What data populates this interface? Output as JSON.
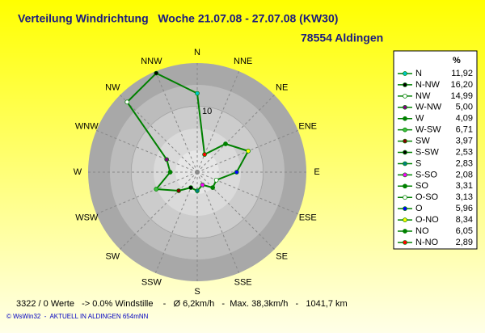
{
  "chart_data": {
    "type": "radar",
    "title": "Verteilung Windrichtung   Woche 21.07.08 - 27.07.08 (KW30)",
    "subtitle": "78554 Aldingen",
    "compass_labels": [
      "N",
      "NNE",
      "NE",
      "ENE",
      "E",
      "ESE",
      "SE",
      "SSE",
      "S",
      "SSW",
      "SW",
      "WSW",
      "W",
      "WNW",
      "NW",
      "NNW"
    ],
    "legend_title": "%",
    "directions": [
      "N",
      "N-NW",
      "NW",
      "W-NW",
      "W",
      "W-SW",
      "SW",
      "S-SW",
      "S",
      "S-SO",
      "SO",
      "O-SO",
      "O",
      "O-NO",
      "NO",
      "N-NO"
    ],
    "values": [
      11.92,
      16.2,
      14.99,
      5.0,
      4.09,
      6.71,
      3.97,
      2.53,
      2.83,
      2.08,
      3.31,
      3.13,
      5.96,
      8.34,
      6.05,
      2.89
    ],
    "value_labels": [
      "11,92",
      "16,20",
      "14,99",
      "5,00",
      "4,09",
      "6,71",
      "3,97",
      "2,53",
      "2,83",
      "2,08",
      "3,31",
      "3,13",
      "5,96",
      "8,34",
      "6,05",
      "2,89"
    ],
    "colors": [
      "#00c8c8",
      "#000000",
      "#ffffff",
      "#800080",
      "#008000",
      "#40c040",
      "#800000",
      "#000000",
      "#008080",
      "#ff00ff",
      "#008000",
      "#ffffff",
      "#0000ff",
      "#ffff00",
      "#008000",
      "#ff0000"
    ],
    "line_color": "#008000",
    "rlim": [
      0,
      16.5
    ],
    "rticks": [
      10
    ],
    "notes": [
      "3322 / 0 Werte   -> 0.0% Windstille    -   Ø 6,2km/h   -  Max. 38,3km/h   -   1041,7 km",
      "© WsWin32  -  AKTUELL IN ALDINGEN 654mNN"
    ]
  }
}
